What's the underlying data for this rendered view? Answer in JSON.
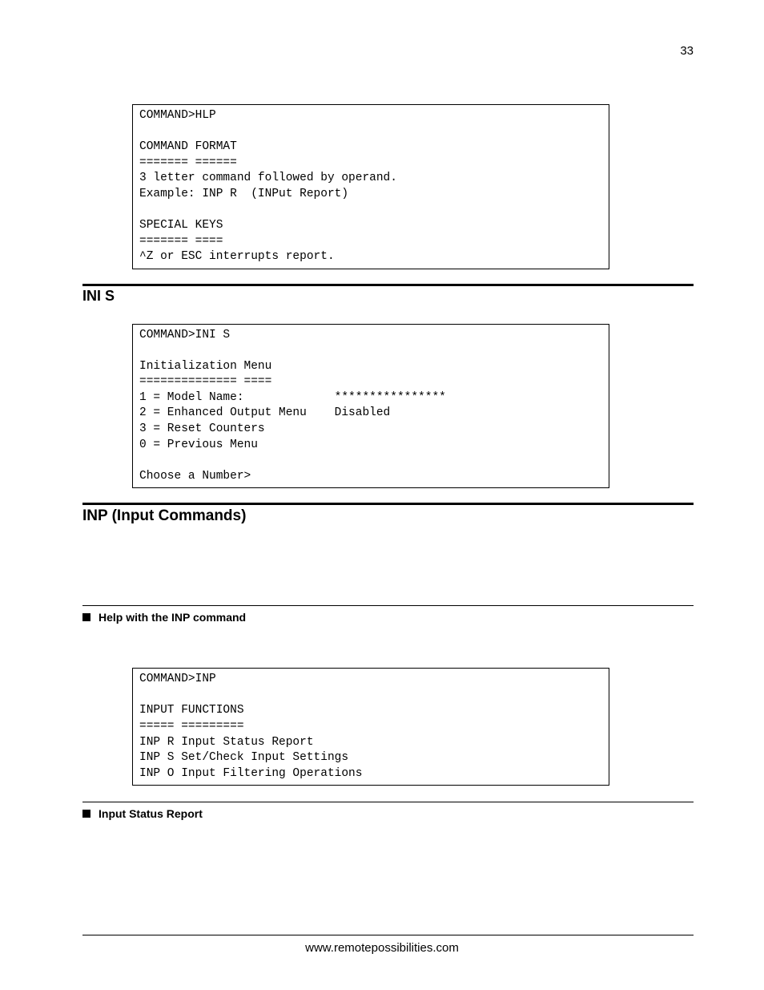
{
  "page_number": "33",
  "code_block_1": "COMMAND>HLP\n\nCOMMAND FORMAT\n======= ======\n3 letter command followed by operand.\nExample: INP R  (INPut Report)\n\nSPECIAL KEYS\n======= ====\n^Z or ESC interrupts report.",
  "section_1": {
    "heading": "INI S"
  },
  "code_block_2": "COMMAND>INI S\n\nInitialization Menu\n============== ====\n1 = Model Name:             ****************\n2 = Enhanced Output Menu    Disabled\n3 = Reset Counters\n0 = Previous Menu\n\nChoose a Number>",
  "section_2": {
    "heading": "INP (Input Commands)"
  },
  "subsection_1": {
    "label": "Help with the INP command"
  },
  "code_block_3": "COMMAND>INP\n\nINPUT FUNCTIONS\n===== =========\nINP R Input Status Report\nINP S Set/Check Input Settings\nINP O Input Filtering Operations\n",
  "subsection_2": {
    "label": "Input Status Report"
  },
  "footer": "www.remotepossibilities.com"
}
